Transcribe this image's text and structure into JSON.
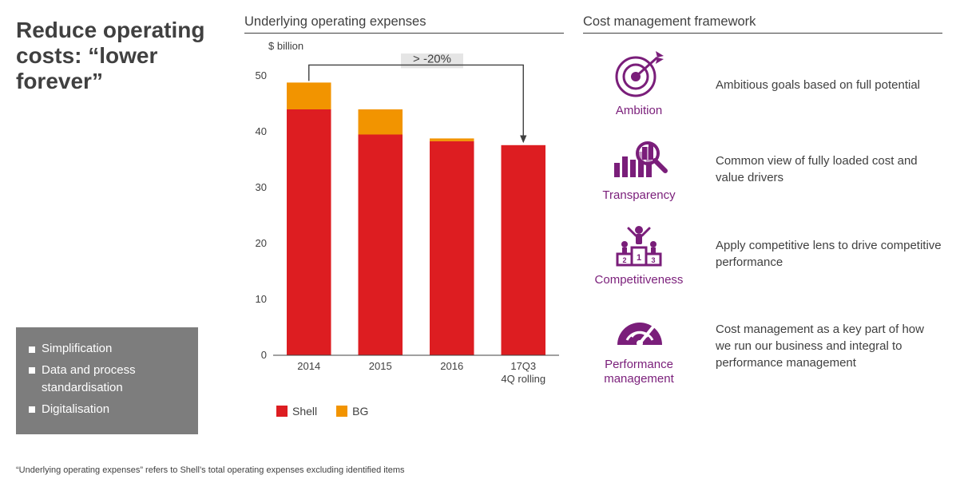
{
  "left": {
    "headline": "Reduce operating costs: “lower forever”",
    "bullets": [
      "Simplification",
      "Data and process standardisation",
      "Digitalisation"
    ]
  },
  "footnote": "“Underlying operating expenses” refers to Shell’s total operating expenses excluding identified items",
  "chart": {
    "title": "Underlying operating expenses",
    "ylabel": "$ billion",
    "type": "stacked-bar",
    "categories": [
      "2014",
      "2015",
      "2016",
      "17Q3"
    ],
    "category_sublabels": [
      "",
      "",
      "",
      "4Q rolling"
    ],
    "series": [
      {
        "name": "Shell",
        "color": "#dd1d21",
        "values": [
          44.0,
          39.5,
          38.3,
          37.6
        ]
      },
      {
        "name": "BG",
        "color": "#f29400",
        "values": [
          4.8,
          4.5,
          0.5,
          0.0
        ]
      }
    ],
    "ylim": [
      0,
      50
    ],
    "ytick_step": 10,
    "bar_width": 0.62,
    "grid_color": "#ffffff",
    "axis_color": "#404040",
    "background_color": "#ffffff",
    "annotation": {
      "text": "> -20%",
      "from_category": 0,
      "to_category": 3
    },
    "label_fontsize": 13
  },
  "framework": {
    "title": "Cost management framework",
    "icon_color": "#7a1e7a",
    "items": [
      {
        "icon": "target",
        "label": "Ambition",
        "desc": "Ambitious goals based on full potential"
      },
      {
        "icon": "magnify-bars",
        "label": "Transparency",
        "desc": "Common view of fully loaded cost and value drivers"
      },
      {
        "icon": "podium",
        "label": "Competitiveness",
        "desc": "Apply competitive lens to drive competitive performance"
      },
      {
        "icon": "gauge",
        "label": "Performance management",
        "desc": "Cost management as a key part of how we run our business and integral to performance management"
      }
    ]
  }
}
